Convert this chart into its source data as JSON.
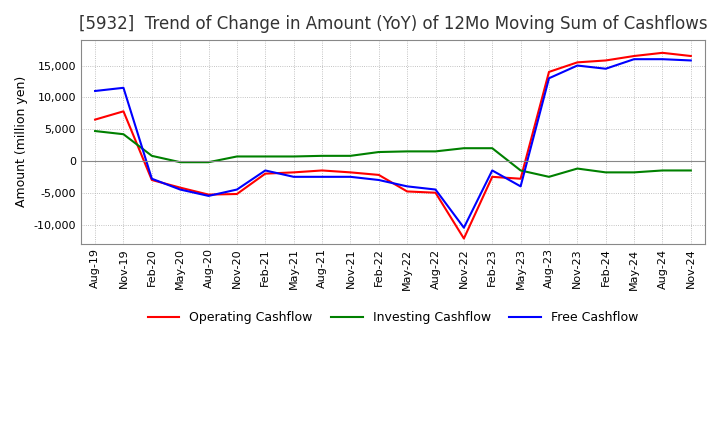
{
  "title": "[5932]  Trend of Change in Amount (YoY) of 12Mo Moving Sum of Cashflows",
  "ylabel": "Amount (million yen)",
  "ylim": [
    -13000,
    19000
  ],
  "yticks": [
    -10000,
    -5000,
    0,
    5000,
    10000,
    15000
  ],
  "x_labels": [
    "Aug-19",
    "Nov-19",
    "Feb-20",
    "May-20",
    "Aug-20",
    "Nov-20",
    "Feb-21",
    "May-21",
    "Aug-21",
    "Nov-21",
    "Feb-22",
    "May-22",
    "Aug-22",
    "Nov-22",
    "Feb-23",
    "May-23",
    "Aug-23",
    "Nov-23",
    "Feb-24",
    "May-24",
    "Aug-24",
    "Nov-24"
  ],
  "operating": [
    6500,
    7800,
    -3000,
    -4200,
    -5300,
    -5200,
    -2000,
    -1800,
    -1500,
    -1800,
    -2200,
    -4800,
    -5000,
    -12200,
    -2500,
    -2800,
    14000,
    15500,
    15800,
    16500,
    17000,
    16500
  ],
  "investing": [
    4700,
    4200,
    800,
    -200,
    -200,
    700,
    700,
    700,
    800,
    800,
    1400,
    1500,
    1500,
    2000,
    2000,
    -1500,
    -2500,
    -1200,
    -1800,
    -1800,
    -1500,
    -1500
  ],
  "free": [
    11000,
    11500,
    -2800,
    -4500,
    -5500,
    -4500,
    -1500,
    -2500,
    -2500,
    -2500,
    -3000,
    -4000,
    -4500,
    -10500,
    -1500,
    -4000,
    13000,
    15000,
    14500,
    16000,
    16000,
    15800
  ],
  "operating_color": "#ff0000",
  "investing_color": "#008000",
  "free_color": "#0000ff",
  "background_color": "#ffffff",
  "grid_color": "#b0b0b0",
  "title_fontsize": 12,
  "legend_fontsize": 9,
  "tick_fontsize": 8
}
